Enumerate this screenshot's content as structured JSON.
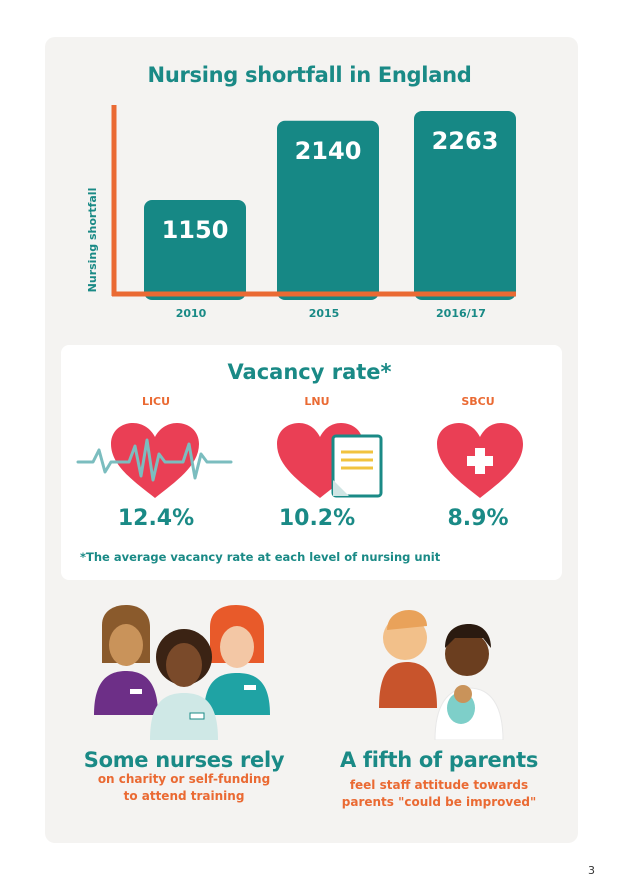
{
  "chart_data": {
    "type": "bar",
    "title": "Nursing shortfall in England",
    "ylabel": "Nursing shortfall",
    "xlabel": "",
    "categories": [
      "2010",
      "2015",
      "2016/17"
    ],
    "values": [
      1150,
      2140,
      2263
    ],
    "ylim": [
      0,
      2500
    ],
    "grid": false,
    "colors": {
      "bar": "#168885",
      "axis": "#ea6a33",
      "bar_label": "#ffffff"
    }
  },
  "vacancy": {
    "title": "Vacancy rate*",
    "units": [
      {
        "label": "LICU",
        "rate": "12.4%",
        "icon": "heartbeat-heart-icon"
      },
      {
        "label": "LNU",
        "rate": "10.2%",
        "icon": "heart-document-icon"
      },
      {
        "label": "SBCU",
        "rate": "8.9%",
        "icon": "heart-cross-icon"
      }
    ],
    "footnote": "*The average vacancy rate at each level of nursing unit"
  },
  "facts": [
    {
      "headline": "Some nurses rely",
      "line1": "on charity or self-funding",
      "line2": "to attend training",
      "icon": "nurses-illustration"
    },
    {
      "headline": "A fifth of parents",
      "line1": "feel staff attitude towards",
      "line2": "parents \"could be improved\"",
      "icon": "parents-baby-illustration"
    }
  ],
  "page_number": "3",
  "colors": {
    "teal": "#1a8a86",
    "orange": "#ea6a33",
    "heart_red": "#ea3f55",
    "panel": "#f4f3f1"
  }
}
